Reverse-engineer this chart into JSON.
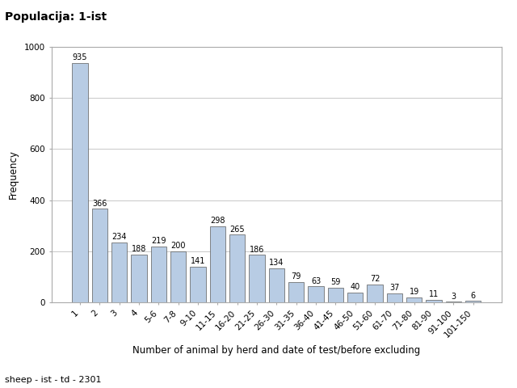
{
  "title": "Populacija: 1-ist",
  "xlabel": "Number of animal by herd and date of test/before excluding",
  "ylabel": "Frequency",
  "footnote": "sheep - ist - td - 2301",
  "categories": [
    "1",
    "2",
    "3",
    "4",
    "5-6",
    "7-8",
    "9-10",
    "11-15",
    "16-20",
    "21-25",
    "26-30",
    "31-35",
    "36-40",
    "41-45",
    "46-50",
    "51-60",
    "61-70",
    "71-80",
    "81-90",
    "91-100",
    "101-150"
  ],
  "values": [
    935,
    366,
    234,
    188,
    219,
    200,
    141,
    298,
    265,
    186,
    134,
    79,
    63,
    59,
    40,
    72,
    37,
    19,
    11,
    3,
    6
  ],
  "bar_color": "#b8cce4",
  "bar_edge_color": "#5a5a5a",
  "background_color": "#ffffff",
  "grid_color": "#c8c8c8",
  "ylim": [
    0,
    1000
  ],
  "yticks": [
    0,
    200,
    400,
    600,
    800,
    1000
  ],
  "title_fontsize": 10,
  "label_fontsize": 8.5,
  "tick_fontsize": 7.5,
  "annotation_fontsize": 7
}
